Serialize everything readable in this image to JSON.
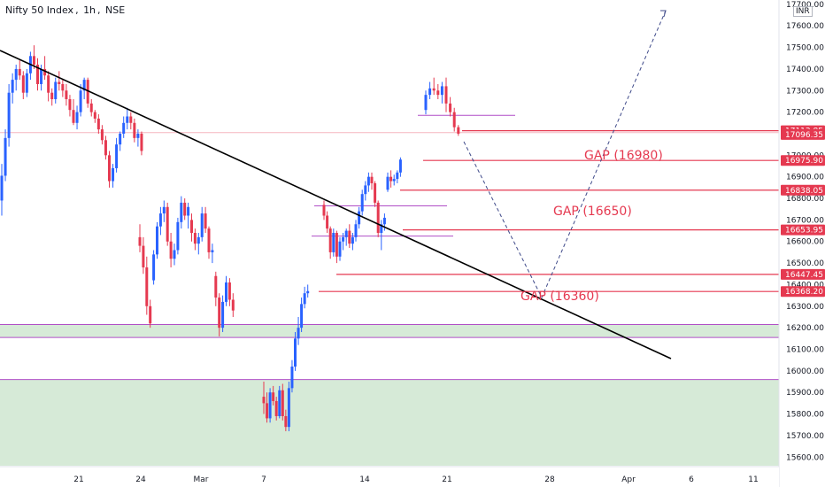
{
  "header": {
    "symbol": "Nifty 50 Index",
    "interval": "1h",
    "exchange": "NSE",
    "currency": "INR"
  },
  "colors": {
    "up": "#2962ff",
    "down": "#e53950",
    "zone": "#d6ead7",
    "level": "#e53950",
    "purple": "#b04fc7",
    "trend": "#000000",
    "projection": "#3f4a8a"
  },
  "chart_data": {
    "type": "candlestick",
    "ylim": [
      15560,
      17720
    ],
    "y_ticks": [
      "17700.00",
      "17600.00",
      "17500.00",
      "17400.00",
      "17300.00",
      "17200.00",
      "17000.00",
      "16900.00",
      "16800.00",
      "16700.00",
      "16600.00",
      "16500.00",
      "16400.00",
      "16300.00",
      "16200.00",
      "16100.00",
      "16000.00",
      "15900.00",
      "15800.00",
      "15700.00",
      "15600.00"
    ],
    "x_ticks": [
      "21",
      "24",
      "Mar",
      "7",
      "14",
      "21",
      "28",
      "Apr",
      "6",
      "11"
    ],
    "price_tags": [
      "17113.85",
      "17096.35",
      "16975.90",
      "16838.05",
      "16653.95",
      "16447.45",
      "16368.20"
    ],
    "gap_labels": [
      "GAP (16980)",
      "GAP (16650)",
      "GAP (16360)"
    ],
    "levels": [
      17113.85,
      16975.9,
      16838.05,
      16653.95,
      16447.45,
      16368.2
    ],
    "zones": [
      [
        16155,
        16215
      ],
      [
        15560,
        15960
      ]
    ],
    "candles": [
      [
        16790,
        16960,
        16720,
        16905
      ],
      [
        16905,
        17120,
        16880,
        17080
      ],
      [
        17080,
        17330,
        17040,
        17290
      ],
      [
        17290,
        17380,
        17240,
        17350
      ],
      [
        17350,
        17420,
        17300,
        17400
      ],
      [
        17400,
        17440,
        17350,
        17370
      ],
      [
        17370,
        17390,
        17260,
        17290
      ],
      [
        17290,
        17400,
        17270,
        17380
      ],
      [
        17380,
        17480,
        17350,
        17460
      ],
      [
        17460,
        17510,
        17400,
        17420
      ],
      [
        17420,
        17450,
        17300,
        17330
      ],
      [
        17330,
        17420,
        17300,
        17400
      ],
      [
        17400,
        17460,
        17350,
        17370
      ],
      [
        17370,
        17390,
        17250,
        17290
      ],
      [
        17290,
        17310,
        17230,
        17260
      ],
      [
        17260,
        17360,
        17240,
        17340
      ],
      [
        17340,
        17390,
        17300,
        17330
      ],
      [
        17330,
        17350,
        17270,
        17300
      ],
      [
        17300,
        17330,
        17230,
        17260
      ],
      [
        17260,
        17280,
        17180,
        17210
      ],
      [
        17210,
        17260,
        17140,
        17150
      ],
      [
        17150,
        17230,
        17120,
        17200
      ],
      [
        17200,
        17330,
        17180,
        17300
      ],
      [
        17300,
        17360,
        17260,
        17350
      ],
      [
        17350,
        17360,
        17220,
        17240
      ],
      [
        17240,
        17260,
        17180,
        17200
      ],
      [
        17200,
        17210,
        17150,
        17170
      ],
      [
        17170,
        17190,
        17100,
        17120
      ],
      [
        17120,
        17140,
        17050,
        17070
      ],
      [
        17070,
        17090,
        16980,
        17000
      ],
      [
        17000,
        17020,
        16850,
        16880
      ],
      [
        16880,
        16960,
        16850,
        16940
      ],
      [
        16940,
        17080,
        16920,
        17050
      ],
      [
        17050,
        17110,
        17020,
        17100
      ],
      [
        17100,
        17180,
        17080,
        17150
      ],
      [
        17150,
        17220,
        17120,
        17180
      ],
      [
        17180,
        17200,
        17120,
        17150
      ],
      [
        17150,
        17170,
        17060,
        17080
      ],
      [
        17080,
        17120,
        17040,
        17100
      ],
      [
        17100,
        17110,
        17000,
        17020
      ],
      [
        16620,
        16680,
        16550,
        16580
      ],
      [
        16580,
        16620,
        16450,
        16480
      ],
      [
        16480,
        16530,
        16260,
        16300
      ],
      [
        16300,
        16330,
        16200,
        16220
      ],
      [
        16420,
        16560,
        16400,
        16540
      ],
      [
        16540,
        16690,
        16520,
        16670
      ],
      [
        16670,
        16760,
        16630,
        16730
      ],
      [
        16730,
        16790,
        16690,
        16760
      ],
      [
        16760,
        16780,
        16580,
        16600
      ],
      [
        16600,
        16640,
        16480,
        16520
      ],
      [
        16520,
        16590,
        16490,
        16560
      ],
      [
        16560,
        16710,
        16540,
        16690
      ],
      [
        16690,
        16810,
        16660,
        16780
      ],
      [
        16780,
        16800,
        16700,
        16720
      ],
      [
        16720,
        16780,
        16660,
        16760
      ],
      [
        16700,
        16730,
        16600,
        16640
      ],
      [
        16640,
        16660,
        16560,
        16590
      ],
      [
        16590,
        16640,
        16540,
        16620
      ],
      [
        16620,
        16760,
        16600,
        16730
      ],
      [
        16730,
        16760,
        16640,
        16660
      ],
      [
        16660,
        16670,
        16520,
        16550
      ],
      [
        16550,
        16590,
        16500,
        16560
      ],
      [
        16440,
        16460,
        16300,
        16340
      ],
      [
        16340,
        16360,
        16160,
        16200
      ],
      [
        16200,
        16350,
        16180,
        16320
      ],
      [
        16320,
        16440,
        16300,
        16410
      ],
      [
        16410,
        16430,
        16300,
        16330
      ],
      [
        16330,
        16360,
        16250,
        16280
      ],
      [
        15880,
        15950,
        15800,
        15850
      ],
      [
        15850,
        15900,
        15760,
        15780
      ],
      [
        15780,
        15920,
        15760,
        15900
      ],
      [
        15900,
        15930,
        15840,
        15860
      ],
      [
        15860,
        15880,
        15770,
        15790
      ],
      [
        15790,
        15930,
        15780,
        15910
      ],
      [
        15910,
        15940,
        15770,
        15790
      ],
      [
        15790,
        15820,
        15720,
        15740
      ],
      [
        15740,
        15950,
        15720,
        15920
      ],
      [
        15920,
        16050,
        15900,
        16020
      ],
      [
        16020,
        16180,
        16000,
        16150
      ],
      [
        16150,
        16250,
        16120,
        16200
      ],
      [
        16200,
        16340,
        16180,
        16310
      ],
      [
        16310,
        16390,
        16290,
        16360
      ],
      [
        16360,
        16400,
        16340,
        16370
      ],
      [
        16770,
        16790,
        16700,
        16720
      ],
      [
        16720,
        16740,
        16640,
        16660
      ],
      [
        16660,
        16670,
        16520,
        16550
      ],
      [
        16550,
        16660,
        16530,
        16640
      ],
      [
        16640,
        16650,
        16500,
        16530
      ],
      [
        16530,
        16620,
        16510,
        16600
      ],
      [
        16600,
        16640,
        16560,
        16620
      ],
      [
        16620,
        16660,
        16580,
        16650
      ],
      [
        16650,
        16680,
        16570,
        16590
      ],
      [
        16590,
        16640,
        16560,
        16620
      ],
      [
        16620,
        16700,
        16600,
        16680
      ],
      [
        16680,
        16760,
        16660,
        16740
      ],
      [
        16740,
        16840,
        16720,
        16820
      ],
      [
        16820,
        16880,
        16790,
        16860
      ],
      [
        16860,
        16920,
        16830,
        16900
      ],
      [
        16900,
        16920,
        16840,
        16870
      ],
      [
        16870,
        16880,
        16760,
        16780
      ],
      [
        16780,
        16790,
        16620,
        16640
      ],
      [
        16640,
        16700,
        16560,
        16680
      ],
      [
        16680,
        16730,
        16650,
        16710
      ],
      [
        16840,
        16920,
        16830,
        16900
      ],
      [
        16900,
        16930,
        16850,
        16880
      ],
      [
        16880,
        16910,
        16860,
        16890
      ],
      [
        16890,
        16930,
        16870,
        16920
      ],
      [
        16920,
        16990,
        16900,
        16980
      ],
      [
        17210,
        17300,
        17190,
        17280
      ],
      [
        17280,
        17340,
        17260,
        17310
      ],
      [
        17310,
        17360,
        17280,
        17300
      ],
      [
        17300,
        17330,
        17260,
        17280
      ],
      [
        17280,
        17340,
        17240,
        17320
      ],
      [
        17320,
        17360,
        17200,
        17240
      ],
      [
        17240,
        17270,
        17180,
        17200
      ],
      [
        17200,
        17220,
        17110,
        17130
      ],
      [
        17130,
        17140,
        17090,
        17100
      ]
    ]
  }
}
